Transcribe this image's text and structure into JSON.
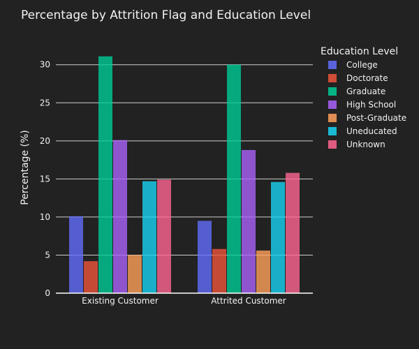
{
  "chart_data": {
    "type": "bar",
    "title": "Percentage by Attrition Flag and Education Level",
    "xlabel": "",
    "ylabel": "Percentage (%)",
    "ylim": [
      0,
      33
    ],
    "yticks": [
      0,
      5,
      10,
      15,
      20,
      25,
      30
    ],
    "grid": true,
    "legend_title": "Education Level",
    "legend_position": "right",
    "categories": [
      "Existing Customer",
      "Attrited Customer"
    ],
    "series": [
      {
        "name": "College",
        "color": "#636efa",
        "values": [
          10.1,
          9.5
        ]
      },
      {
        "name": "Doctorate",
        "color": "#ef553b",
        "values": [
          4.2,
          5.8
        ]
      },
      {
        "name": "Graduate",
        "color": "#00cc96",
        "values": [
          31.1,
          30.0
        ]
      },
      {
        "name": "High School",
        "color": "#ab63fa",
        "values": [
          20.1,
          18.8
        ]
      },
      {
        "name": "Post-Graduate",
        "color": "#ffa15a",
        "values": [
          5.0,
          5.6
        ]
      },
      {
        "name": "Uneducated",
        "color": "#19d3f3",
        "values": [
          14.7,
          14.6
        ]
      },
      {
        "name": "Unknown",
        "color": "#ff6692",
        "values": [
          14.9,
          15.8
        ]
      }
    ]
  }
}
